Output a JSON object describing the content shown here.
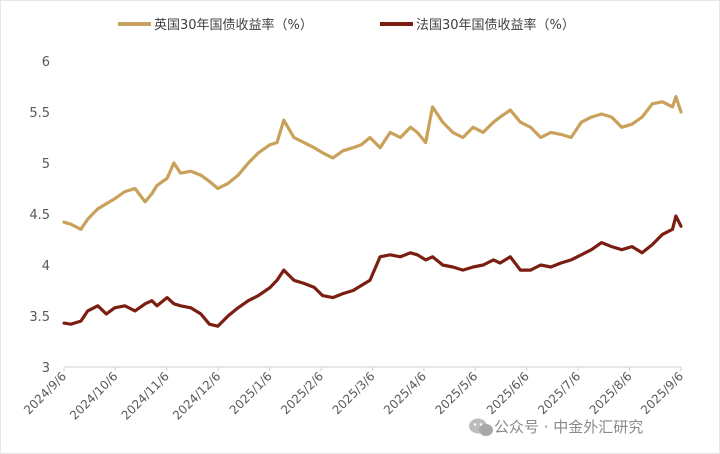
{
  "watermark": "公众号 · 中金外汇研究",
  "chart_data": {
    "type": "line",
    "title": "",
    "xlabel": "",
    "ylabel": "",
    "ylim": [
      3,
      6
    ],
    "yticks": [
      3,
      3.5,
      4,
      4.5,
      5,
      5.5,
      6
    ],
    "ytick_labels": [
      "3",
      "3.5",
      "4",
      "4.5",
      "5",
      "5.5",
      "6"
    ],
    "x_range": [
      "2024-09-06",
      "2025-09-06"
    ],
    "xtick_labels": [
      "2024/9/6",
      "2024/10/6",
      "2024/11/6",
      "2024/12/6",
      "2025/1/6",
      "2025/2/6",
      "2025/3/6",
      "2025/4/6",
      "2025/5/6",
      "2025/6/6",
      "2025/7/6",
      "2025/8/6",
      "2025/9/6"
    ],
    "grid": false,
    "legend_position": "top",
    "series": [
      {
        "name": "英国30年国债收益率（%）",
        "color": "#C9A15A",
        "x": [
          "2024-09-06",
          "2024-09-10",
          "2024-09-16",
          "2024-09-20",
          "2024-09-26",
          "2024-10-01",
          "2024-10-06",
          "2024-10-12",
          "2024-10-18",
          "2024-10-24",
          "2024-10-28",
          "2024-10-31",
          "2024-11-06",
          "2024-11-10",
          "2024-11-14",
          "2024-11-20",
          "2024-11-26",
          "2024-12-01",
          "2024-12-06",
          "2024-12-12",
          "2024-12-18",
          "2024-12-24",
          "2024-12-30",
          "2025-01-06",
          "2025-01-10",
          "2025-01-14",
          "2025-01-20",
          "2025-01-26",
          "2025-02-01",
          "2025-02-06",
          "2025-02-12",
          "2025-02-18",
          "2025-02-24",
          "2025-03-01",
          "2025-03-06",
          "2025-03-12",
          "2025-03-18",
          "2025-03-24",
          "2025-03-30",
          "2025-04-03",
          "2025-04-08",
          "2025-04-12",
          "2025-04-18",
          "2025-04-24",
          "2025-04-30",
          "2025-05-06",
          "2025-05-12",
          "2025-05-18",
          "2025-05-22",
          "2025-05-28",
          "2025-06-03",
          "2025-06-09",
          "2025-06-15",
          "2025-06-21",
          "2025-06-27",
          "2025-07-03",
          "2025-07-09",
          "2025-07-15",
          "2025-07-21",
          "2025-07-27",
          "2025-08-02",
          "2025-08-08",
          "2025-08-14",
          "2025-08-20",
          "2025-08-26",
          "2025-09-01",
          "2025-09-03",
          "2025-09-06"
        ],
        "values": [
          4.42,
          4.4,
          4.35,
          4.45,
          4.55,
          4.6,
          4.65,
          4.72,
          4.75,
          4.62,
          4.7,
          4.78,
          4.85,
          5.0,
          4.9,
          4.92,
          4.88,
          4.82,
          4.75,
          4.8,
          4.88,
          5.0,
          5.1,
          5.18,
          5.2,
          5.42,
          5.25,
          5.2,
          5.15,
          5.1,
          5.05,
          5.12,
          5.15,
          5.18,
          5.25,
          5.15,
          5.3,
          5.25,
          5.35,
          5.3,
          5.2,
          5.55,
          5.4,
          5.3,
          5.25,
          5.35,
          5.3,
          5.4,
          5.45,
          5.52,
          5.4,
          5.35,
          5.25,
          5.3,
          5.28,
          5.25,
          5.4,
          5.45,
          5.48,
          5.45,
          5.35,
          5.38,
          5.45,
          5.58,
          5.6,
          5.55,
          5.65,
          5.5
        ]
      },
      {
        "name": "法国30年国债收益率（%）",
        "color": "#7B1E12",
        "x": [
          "2024-09-06",
          "2024-09-10",
          "2024-09-16",
          "2024-09-20",
          "2024-09-26",
          "2024-10-01",
          "2024-10-06",
          "2024-10-12",
          "2024-10-18",
          "2024-10-24",
          "2024-10-28",
          "2024-10-31",
          "2024-11-06",
          "2024-11-10",
          "2024-11-14",
          "2024-11-20",
          "2024-11-26",
          "2024-12-01",
          "2024-12-06",
          "2024-12-12",
          "2024-12-18",
          "2024-12-24",
          "2024-12-30",
          "2025-01-06",
          "2025-01-10",
          "2025-01-14",
          "2025-01-20",
          "2025-01-26",
          "2025-02-01",
          "2025-02-06",
          "2025-02-12",
          "2025-02-18",
          "2025-02-24",
          "2025-03-01",
          "2025-03-06",
          "2025-03-12",
          "2025-03-18",
          "2025-03-24",
          "2025-03-30",
          "2025-04-03",
          "2025-04-08",
          "2025-04-12",
          "2025-04-18",
          "2025-04-24",
          "2025-04-30",
          "2025-05-06",
          "2025-05-12",
          "2025-05-18",
          "2025-05-22",
          "2025-05-28",
          "2025-06-03",
          "2025-06-09",
          "2025-06-15",
          "2025-06-21",
          "2025-06-27",
          "2025-07-03",
          "2025-07-09",
          "2025-07-15",
          "2025-07-21",
          "2025-07-27",
          "2025-08-02",
          "2025-08-08",
          "2025-08-14",
          "2025-08-20",
          "2025-08-26",
          "2025-09-01",
          "2025-09-03",
          "2025-09-06"
        ],
        "values": [
          3.43,
          3.42,
          3.45,
          3.55,
          3.6,
          3.52,
          3.58,
          3.6,
          3.55,
          3.62,
          3.65,
          3.6,
          3.68,
          3.62,
          3.6,
          3.58,
          3.52,
          3.42,
          3.4,
          3.5,
          3.58,
          3.65,
          3.7,
          3.78,
          3.85,
          3.95,
          3.85,
          3.82,
          3.78,
          3.7,
          3.68,
          3.72,
          3.75,
          3.8,
          3.85,
          4.08,
          4.1,
          4.08,
          4.12,
          4.1,
          4.05,
          4.08,
          4.0,
          3.98,
          3.95,
          3.98,
          4.0,
          4.05,
          4.02,
          4.08,
          3.95,
          3.95,
          4.0,
          3.98,
          4.02,
          4.05,
          4.1,
          4.15,
          4.22,
          4.18,
          4.15,
          4.18,
          4.12,
          4.2,
          4.3,
          4.35,
          4.48,
          4.38
        ]
      }
    ]
  }
}
